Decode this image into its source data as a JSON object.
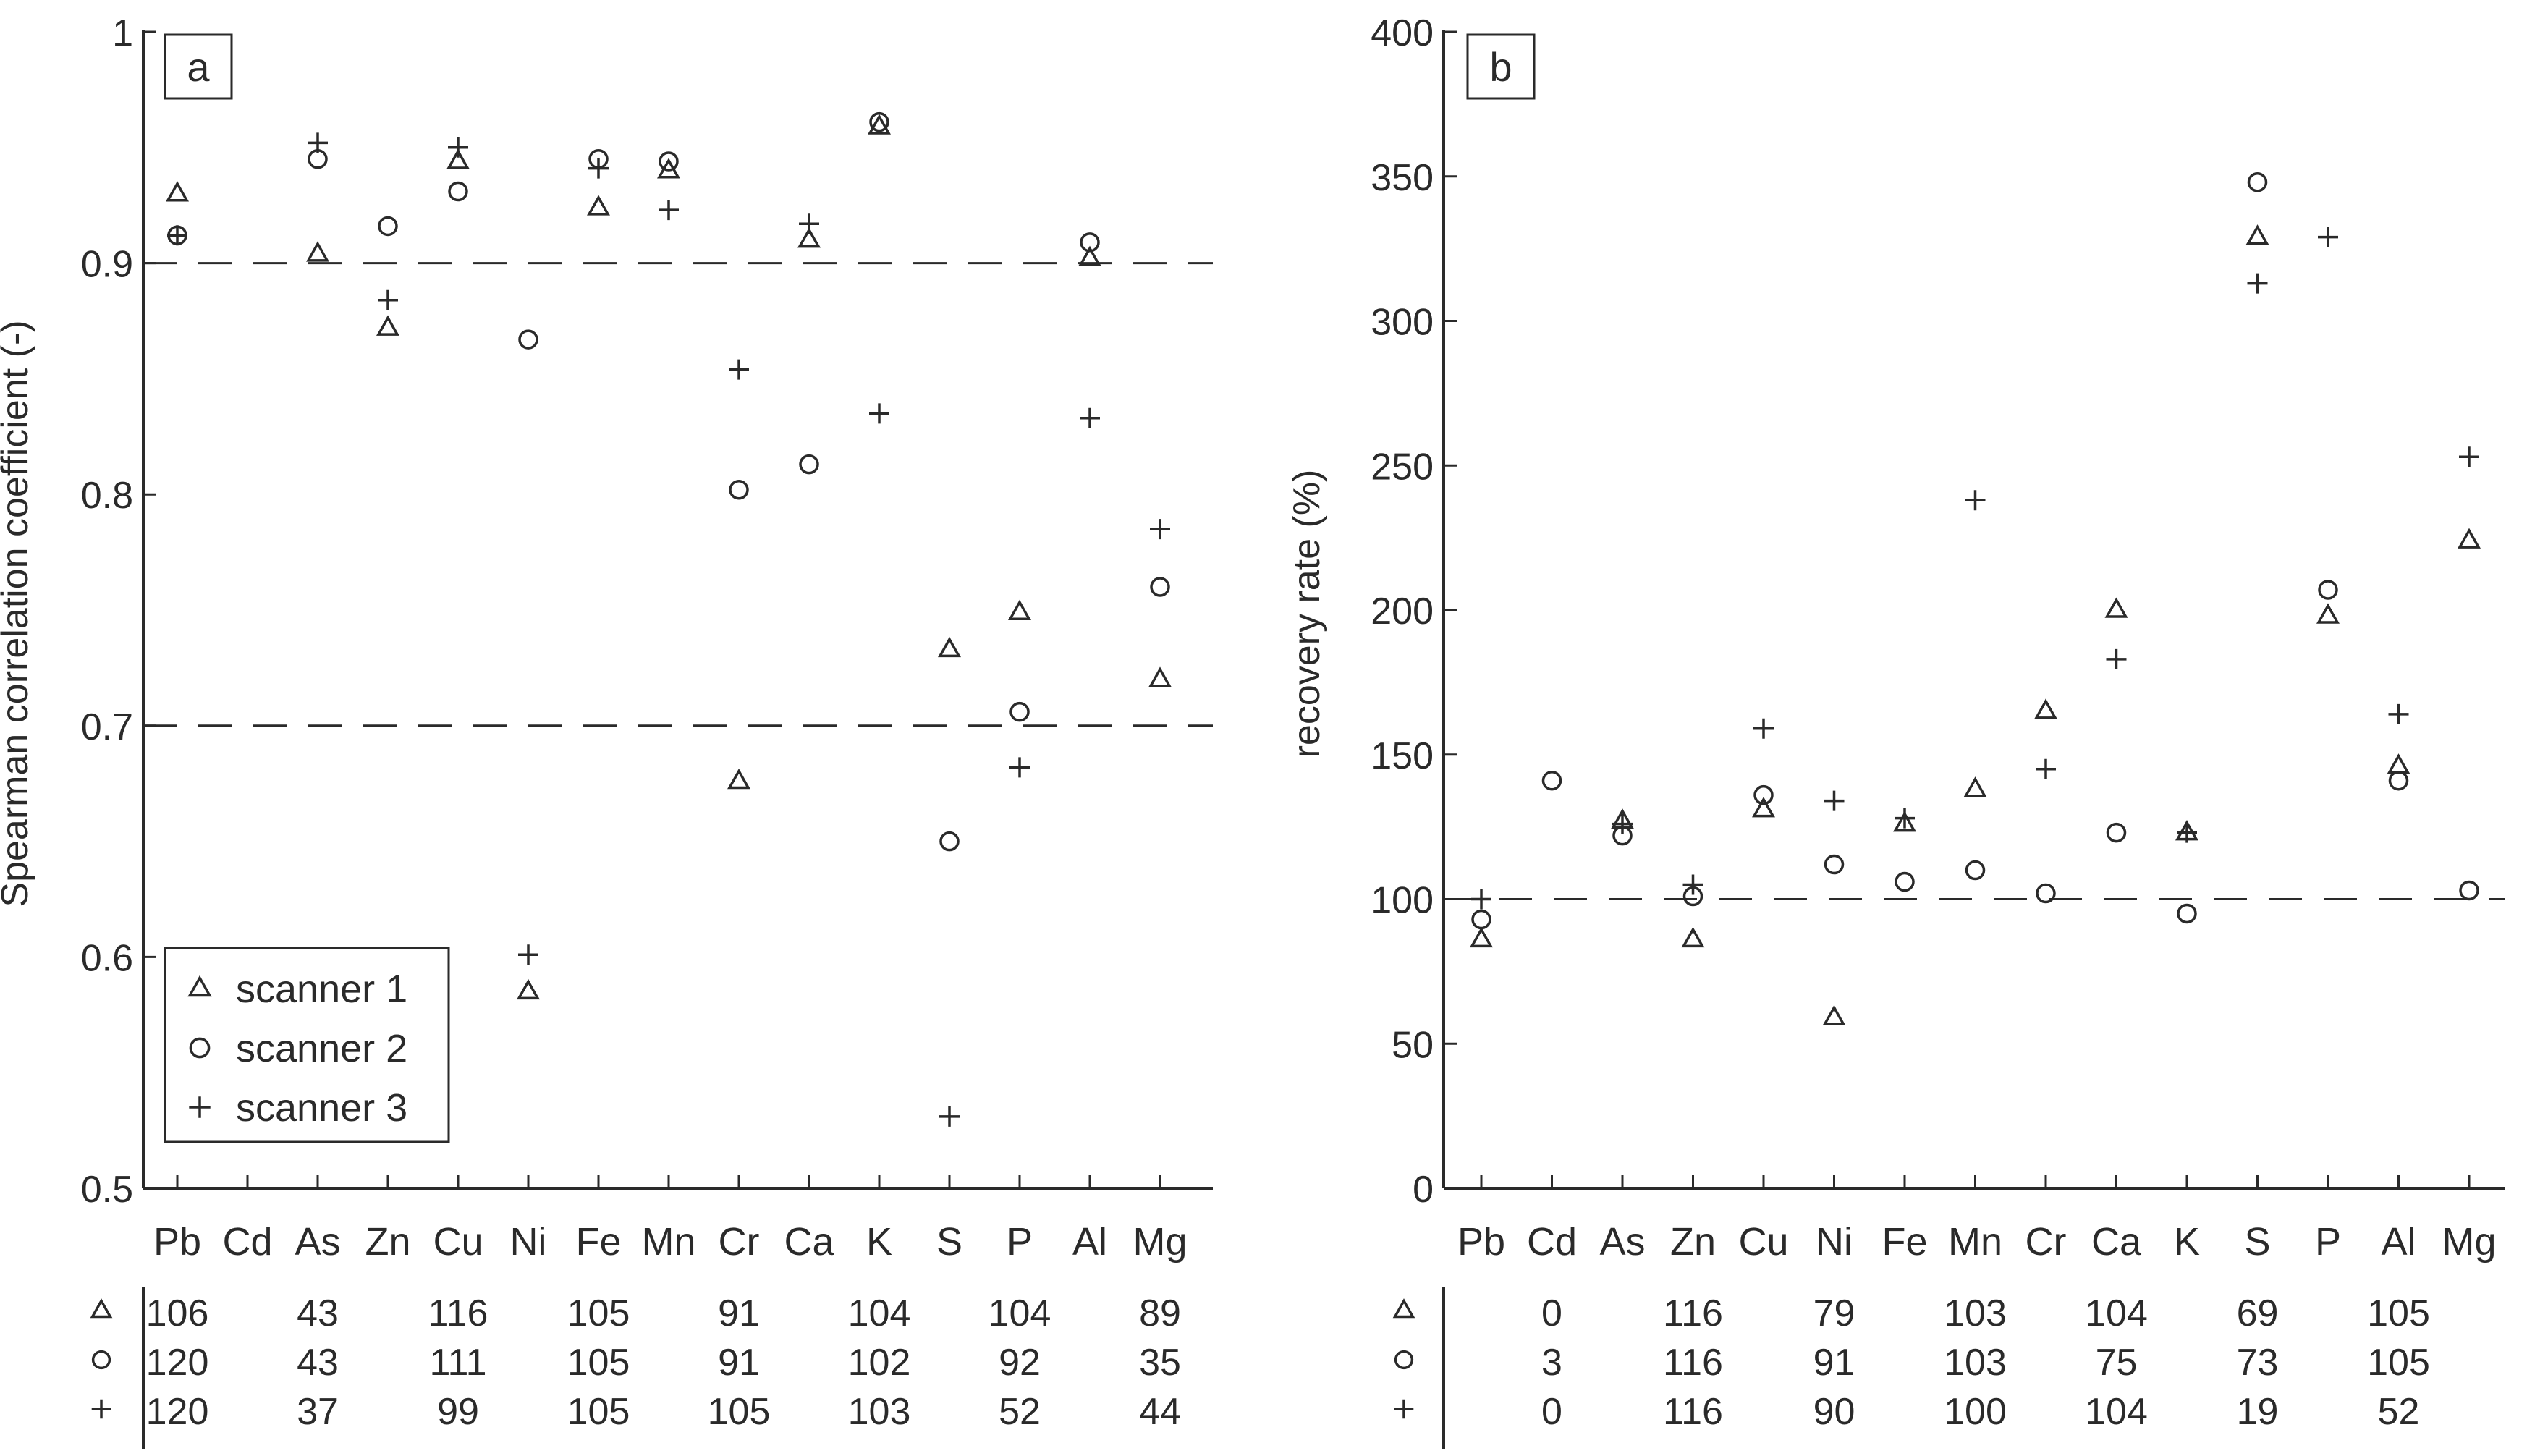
{
  "figure": {
    "legend": {
      "entries": [
        "scanner 1",
        "scanner 2",
        "scanner 3"
      ]
    },
    "marker_styles": {
      "scanner 1": "triangle",
      "scanner 2": "circle",
      "scanner 3": "plus"
    },
    "text_color": "#2a2a2a"
  },
  "chart_data": [
    {
      "id": "a",
      "type": "scatter",
      "panel_label": "a",
      "title": "",
      "xlabel": "",
      "ylabel": "Spearman correlation coefficient (-)",
      "categories": [
        "Pb",
        "Cd",
        "As",
        "Zn",
        "Cu",
        "Ni",
        "Fe",
        "Mn",
        "Cr",
        "Ca",
        "K",
        "S",
        "P",
        "Al",
        "Mg"
      ],
      "ylim": [
        0.5,
        1.0
      ],
      "yticks": [
        0.5,
        0.6,
        0.7,
        0.8,
        0.9,
        1.0
      ],
      "ytick_labels": [
        "0.5",
        "0.6",
        "0.7",
        "0.8",
        "0.9",
        "1"
      ],
      "reference_lines": [
        0.9,
        0.7
      ],
      "legend_position": "bottom-left",
      "series": [
        {
          "name": "scanner 1",
          "marker": "triangle",
          "values": [
            0.93,
            null,
            0.904,
            0.872,
            0.944,
            0.585,
            0.924,
            0.94,
            0.676,
            0.91,
            0.959,
            0.733,
            0.749,
            0.902,
            0.72
          ]
        },
        {
          "name": "scanner 2",
          "marker": "circle",
          "values": [
            0.912,
            null,
            0.945,
            0.916,
            0.931,
            0.867,
            0.945,
            0.944,
            0.802,
            0.813,
            0.961,
            0.65,
            0.706,
            0.909,
            0.76
          ]
        },
        {
          "name": "scanner 3",
          "marker": "plus",
          "values": [
            0.912,
            null,
            0.952,
            0.884,
            0.95,
            0.601,
            0.941,
            0.923,
            0.854,
            0.917,
            0.835,
            0.531,
            0.682,
            0.833,
            0.785
          ]
        }
      ],
      "count_table": {
        "rows": [
          {
            "marker": "triangle",
            "values": [
              "106",
              "",
              "43",
              "",
              "116",
              "",
              "105",
              "",
              "91",
              "",
              "104",
              "",
              "104",
              "",
              "89"
            ]
          },
          {
            "marker": "circle",
            "values": [
              "120",
              "",
              "43",
              "",
              "111",
              "",
              "105",
              "",
              "91",
              "",
              "102",
              "",
              "92",
              "",
              "35"
            ]
          },
          {
            "marker": "plus",
            "values": [
              "120",
              "",
              "37",
              "",
              "99",
              "",
              "105",
              "",
              "105",
              "",
              "103",
              "",
              "52",
              "",
              "44"
            ]
          }
        ]
      }
    },
    {
      "id": "b",
      "type": "scatter",
      "panel_label": "b",
      "title": "",
      "xlabel": "",
      "ylabel": "recovery rate (%)",
      "categories": [
        "Pb",
        "Cd",
        "As",
        "Zn",
        "Cu",
        "Ni",
        "Fe",
        "Mn",
        "Cr",
        "Ca",
        "K",
        "S",
        "P",
        "Al",
        "Mg"
      ],
      "ylim": [
        0,
        400
      ],
      "yticks": [
        0,
        50,
        100,
        150,
        200,
        250,
        300,
        350,
        400
      ],
      "ytick_labels": [
        "0",
        "50",
        "100",
        "150",
        "200",
        "250",
        "300",
        "350",
        "400"
      ],
      "reference_lines": [
        100
      ],
      "series": [
        {
          "name": "scanner 1",
          "marker": "triangle",
          "values": [
            86,
            null,
            127,
            86,
            131,
            59,
            126,
            138,
            165,
            200,
            123,
            329,
            198,
            146,
            224
          ]
        },
        {
          "name": "scanner 2",
          "marker": "circle",
          "values": [
            93,
            141,
            122,
            101,
            136,
            112,
            106,
            110,
            102,
            123,
            95,
            348,
            207,
            141,
            103
          ]
        },
        {
          "name": "scanner 3",
          "marker": "plus",
          "values": [
            100,
            null,
            126,
            105,
            159,
            134,
            128,
            238,
            145,
            183,
            123,
            313,
            329,
            164,
            253
          ]
        }
      ],
      "count_table": {
        "rows": [
          {
            "marker": "triangle",
            "values": [
              "",
              "0",
              "",
              "116",
              "",
              "79",
              "",
              "103",
              "",
              "104",
              "",
              "69",
              "",
              "105",
              ""
            ]
          },
          {
            "marker": "circle",
            "values": [
              "",
              "3",
              "",
              "116",
              "",
              "91",
              "",
              "103",
              "",
              "75",
              "",
              "73",
              "",
              "105",
              ""
            ]
          },
          {
            "marker": "plus",
            "values": [
              "",
              "0",
              "",
              "116",
              "",
              "90",
              "",
              "100",
              "",
              "104",
              "",
              "19",
              "",
              "52",
              ""
            ]
          }
        ]
      }
    }
  ]
}
